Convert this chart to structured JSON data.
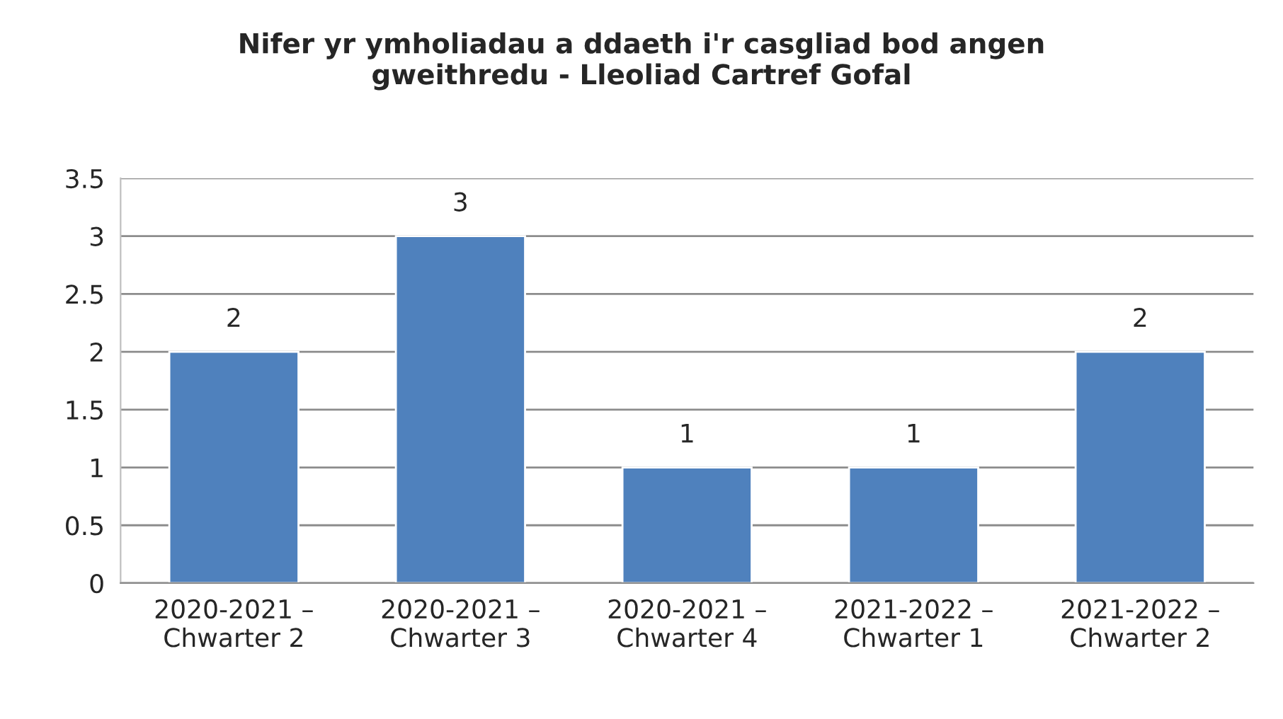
{
  "chart_data": {
    "type": "bar",
    "title": "Nifer yr ymholiadau a ddaeth i'r casgliad bod angen\ngweithredu - Lleoliad Cartref Gofal",
    "categories": [
      "2020-2021 –\nChwarter 2",
      "2020-2021 –\nChwarter 3",
      "2020-2021 –\nChwarter 4",
      "2021-2022 –\nChwarter 1",
      "2021-2022 –\nChwarter 2"
    ],
    "values": [
      2,
      3,
      1,
      1,
      2
    ],
    "color": "#4f81bd",
    "ylim": [
      0,
      3.5
    ],
    "yticks": [
      0,
      0.5,
      1,
      1.5,
      2,
      2.5,
      3,
      3.5
    ],
    "grid": "y",
    "data_labels": true,
    "legend": false
  }
}
